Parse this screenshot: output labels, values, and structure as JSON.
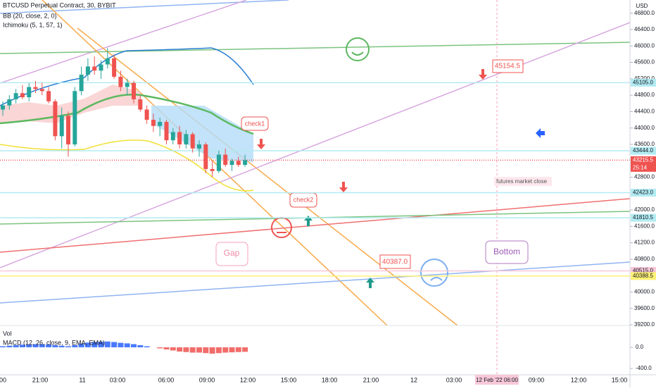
{
  "header": {
    "symbol": "BTCUSD Perpetual Contract, 30, BYBIT",
    "indicators": [
      "BB (20, close, 2, 0)",
      "Ichimoku (5, 1, 57, 1)"
    ]
  },
  "price_axis": {
    "unit": "USD",
    "ylim": [
      39183,
      47122
    ],
    "ticks": [
      {
        "value": 46800,
        "label": "46800.0"
      },
      {
        "value": 46400,
        "label": "46400.0"
      },
      {
        "value": 46000,
        "label": "46000.0"
      },
      {
        "value": 45600,
        "label": "45600.0"
      },
      {
        "value": 45200,
        "label": "45200.0"
      },
      {
        "value": 44800,
        "label": "44800.0"
      },
      {
        "value": 44400,
        "label": "44400.0"
      },
      {
        "value": 44000,
        "label": "44000.0"
      },
      {
        "value": 43600,
        "label": "43600.0"
      },
      {
        "value": 42800,
        "label": "42800.0"
      },
      {
        "value": 42000,
        "label": "42000.0"
      },
      {
        "value": 41600,
        "label": "41600.0"
      },
      {
        "value": 41200,
        "label": "41200.0"
      },
      {
        "value": 40800,
        "label": "40800.0"
      },
      {
        "value": 40000,
        "label": "40000.0"
      },
      {
        "value": 39600,
        "label": "39600.0"
      },
      {
        "value": 39200,
        "label": "39200.0"
      }
    ],
    "markers": [
      {
        "value": 45105,
        "label": "45105.0",
        "color": "#b2ebf2"
      },
      {
        "value": 43444,
        "label": "43444.0",
        "color": "#b2ebf2"
      },
      {
        "value": 43215.5,
        "label": "43215.5",
        "sublabel": "25:14",
        "color": "#ef5350"
      },
      {
        "value": 42423,
        "label": "42423.0",
        "color": "#b2ebf2"
      },
      {
        "value": 41810.5,
        "label": "41810.5",
        "color": "#b2ebf2"
      },
      {
        "value": 40515,
        "label": "40515.0",
        "color": "#f8c8d8"
      },
      {
        "value": 40388.5,
        "label": "40388.5",
        "color": "#fff176"
      }
    ]
  },
  "time_axis": {
    "labels": [
      "00",
      "21:00",
      "11",
      "03:00",
      "06:00",
      "09:00",
      "12:00",
      "15:00",
      "18:00",
      "21:00",
      "12",
      "03:00",
      "09:00",
      "12:00",
      "15:00"
    ],
    "crosshair_label": "12 Feb '22  06:00"
  },
  "candles": [
    [
      44450,
      44650,
      44300,
      44550
    ],
    [
      44550,
      44800,
      44450,
      44700
    ],
    [
      44700,
      44950,
      44600,
      44850
    ],
    [
      44850,
      45050,
      44700,
      44750
    ],
    [
      44750,
      45100,
      44650,
      45000
    ],
    [
      45000,
      45150,
      44850,
      44950
    ],
    [
      44950,
      45100,
      44800,
      44900
    ],
    [
      44900,
      45000,
      44600,
      44650
    ],
    [
      44650,
      44700,
      43700,
      43800
    ],
    [
      43800,
      44500,
      43500,
      44300
    ],
    [
      44300,
      44400,
      43300,
      43600
    ],
    [
      43600,
      45000,
      43550,
      44900
    ],
    [
      44900,
      45500,
      44800,
      45300
    ],
    [
      45300,
      45700,
      45150,
      45500
    ],
    [
      45500,
      45750,
      45300,
      45400
    ],
    [
      45400,
      45650,
      45200,
      45550
    ],
    [
      45550,
      45950,
      45450,
      45700
    ],
    [
      45700,
      45800,
      45200,
      45250
    ],
    [
      45250,
      45400,
      44900,
      45000
    ],
    [
      45000,
      45200,
      44800,
      45100
    ],
    [
      45100,
      45150,
      44600,
      44700
    ],
    [
      44700,
      44800,
      44400,
      44450
    ],
    [
      44450,
      44550,
      44100,
      44200
    ],
    [
      44200,
      44350,
      43900,
      44050
    ],
    [
      44050,
      44250,
      43800,
      44150
    ],
    [
      44150,
      44200,
      43600,
      43700
    ],
    [
      43700,
      44000,
      43600,
      43900
    ],
    [
      43900,
      44050,
      43500,
      43600
    ],
    [
      43600,
      43950,
      43500,
      43850
    ],
    [
      43850,
      43900,
      43400,
      43500
    ],
    [
      43500,
      43700,
      43300,
      43600
    ],
    [
      43600,
      43650,
      42900,
      43000
    ],
    [
      43000,
      43200,
      42800,
      42950
    ],
    [
      42950,
      43450,
      42900,
      43350
    ],
    [
      43350,
      43500,
      43050,
      43100
    ],
    [
      43100,
      43250,
      42950,
      43200
    ],
    [
      43200,
      43300,
      43050,
      43100
    ],
    [
      43100,
      43350,
      43050,
      43215.5
    ]
  ],
  "lower_pane": {
    "labels": [
      "Vol",
      "MACD (12, 26, close, 9, EMA, EMA)"
    ],
    "ylim": [
      -520,
      413
    ],
    "ticks": [
      {
        "value": 0,
        "label": "0.0"
      },
      {
        "value": -400,
        "label": "-400.0"
      }
    ],
    "macd_histogram": [
      20,
      30,
      40,
      50,
      55,
      60,
      60,
      55,
      40,
      30,
      20,
      40,
      70,
      90,
      100,
      105,
      110,
      100,
      85,
      75,
      60,
      40,
      20,
      0,
      -20,
      -40,
      -60,
      -80,
      -90,
      -100,
      -100,
      -110,
      -120,
      -110,
      -100,
      -95,
      -90,
      -85
    ]
  },
  "annotations": [
    "check1",
    "check2",
    "45154.5",
    "40387.0",
    "Gap",
    "Bottom",
    "futures market close"
  ]
}
